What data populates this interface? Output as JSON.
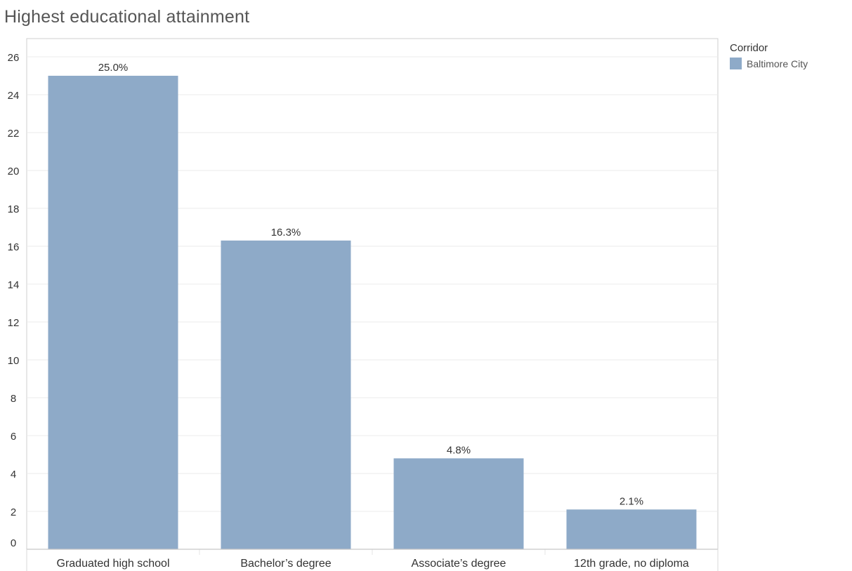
{
  "chart_data": {
    "type": "bar",
    "title": "Highest educational attainment",
    "xlabel": "",
    "ylabel": "",
    "categories": [
      "Graduated high school",
      "Bachelor’s degree",
      "Associate’s degree",
      "12th grade, no diploma"
    ],
    "series": [
      {
        "name": "Baltimore City",
        "values": [
          25.0,
          16.3,
          4.8,
          2.1
        ],
        "labels": [
          "25.0%",
          "16.3%",
          "4.8%",
          "2.1%"
        ],
        "color": "#8eaac8"
      }
    ],
    "yticks": [
      0,
      2,
      4,
      6,
      8,
      10,
      12,
      14,
      16,
      18,
      20,
      22,
      24,
      26
    ],
    "ylim": [
      0,
      26.5
    ],
    "grid": true,
    "legend": {
      "title": "Corridor",
      "placement": "right",
      "items": [
        {
          "label": "Baltimore City",
          "color": "#8eaac8"
        }
      ]
    }
  }
}
